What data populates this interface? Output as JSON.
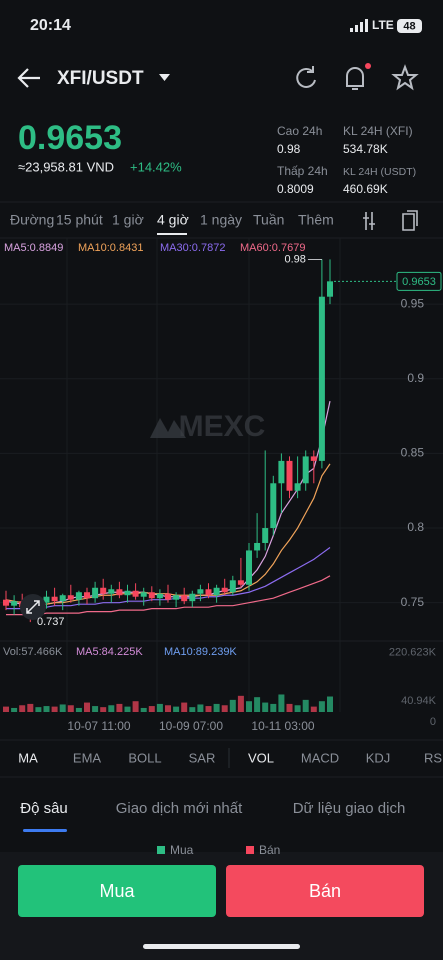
{
  "status": {
    "time": "20:14",
    "network": "LTE",
    "battery": "48"
  },
  "header": {
    "pair": "XFI/USDT"
  },
  "price": {
    "last": "0.9653",
    "vnd": "≈23,958.81 VND",
    "change": "+14.42%"
  },
  "stats": [
    {
      "label": "Cao 24h",
      "value": "0.98"
    },
    {
      "label": "KL 24H (XFI)",
      "value": "534.78K"
    },
    {
      "label": "Thấp 24h",
      "value": "0.8009"
    },
    {
      "label": "KL 24H (USDT)",
      "value": "460.69K"
    }
  ],
  "timeframes": [
    "Đường",
    "15 phút",
    "1 giờ",
    "4 giờ",
    "1 ngày",
    "Tuần",
    "Thêm"
  ],
  "ma_legend": [
    "MA5:0.8849",
    "MA10:0.8431",
    "MA30:0.7872",
    "MA60:0.7679"
  ],
  "chart": {
    "type": "candlestick",
    "watermark": "MEXC",
    "ylim": [
      0.725,
      0.995
    ],
    "yticks": [
      0.75,
      0.8,
      0.85,
      0.9,
      0.95
    ],
    "high": 0.98,
    "low": 0.737,
    "last": 0.9653,
    "up_color": "#2ebd85",
    "down_color": "#f6465d",
    "candles": [
      [
        0.752,
        0.758,
        0.745,
        0.748
      ],
      [
        0.748,
        0.755,
        0.742,
        0.751
      ],
      [
        0.751,
        0.756,
        0.745,
        0.747
      ],
      [
        0.747,
        0.75,
        0.737,
        0.745
      ],
      [
        0.745,
        0.752,
        0.74,
        0.75
      ],
      [
        0.75,
        0.758,
        0.746,
        0.754
      ],
      [
        0.754,
        0.76,
        0.748,
        0.751
      ],
      [
        0.751,
        0.756,
        0.745,
        0.755
      ],
      [
        0.755,
        0.762,
        0.75,
        0.752
      ],
      [
        0.752,
        0.758,
        0.748,
        0.757
      ],
      [
        0.757,
        0.76,
        0.749,
        0.753
      ],
      [
        0.753,
        0.764,
        0.75,
        0.76
      ],
      [
        0.76,
        0.766,
        0.752,
        0.756
      ],
      [
        0.756,
        0.762,
        0.75,
        0.759
      ],
      [
        0.759,
        0.764,
        0.753,
        0.755
      ],
      [
        0.755,
        0.762,
        0.75,
        0.758
      ],
      [
        0.758,
        0.763,
        0.752,
        0.754
      ],
      [
        0.754,
        0.76,
        0.748,
        0.757
      ],
      [
        0.757,
        0.761,
        0.751,
        0.753
      ],
      [
        0.753,
        0.759,
        0.748,
        0.756
      ],
      [
        0.756,
        0.762,
        0.75,
        0.752
      ],
      [
        0.752,
        0.757,
        0.747,
        0.755
      ],
      [
        0.755,
        0.76,
        0.749,
        0.751
      ],
      [
        0.751,
        0.758,
        0.747,
        0.756
      ],
      [
        0.756,
        0.762,
        0.751,
        0.759
      ],
      [
        0.759,
        0.763,
        0.753,
        0.755
      ],
      [
        0.755,
        0.762,
        0.75,
        0.76
      ],
      [
        0.76,
        0.766,
        0.755,
        0.757
      ],
      [
        0.757,
        0.768,
        0.755,
        0.765
      ],
      [
        0.765,
        0.78,
        0.76,
        0.762
      ],
      [
        0.762,
        0.79,
        0.758,
        0.785
      ],
      [
        0.785,
        0.81,
        0.78,
        0.79
      ],
      [
        0.79,
        0.852,
        0.785,
        0.8
      ],
      [
        0.8,
        0.835,
        0.795,
        0.83
      ],
      [
        0.83,
        0.85,
        0.81,
        0.845
      ],
      [
        0.845,
        0.848,
        0.82,
        0.825
      ],
      [
        0.825,
        0.848,
        0.82,
        0.83
      ],
      [
        0.83,
        0.852,
        0.825,
        0.848
      ],
      [
        0.848,
        0.852,
        0.83,
        0.845
      ],
      [
        0.845,
        0.98,
        0.84,
        0.955
      ],
      [
        0.955,
        0.98,
        0.95,
        0.9653
      ]
    ],
    "ma_lines": [
      {
        "name": "MA5",
        "color": "#d9a3e0",
        "values": [
          0.751,
          0.75,
          0.749,
          0.748,
          0.748,
          0.749,
          0.75,
          0.751,
          0.753,
          0.754,
          0.754,
          0.755,
          0.756,
          0.757,
          0.757,
          0.757,
          0.757,
          0.757,
          0.756,
          0.755,
          0.754,
          0.754,
          0.754,
          0.754,
          0.755,
          0.755,
          0.757,
          0.758,
          0.759,
          0.76,
          0.766,
          0.772,
          0.781,
          0.795,
          0.81,
          0.818,
          0.826,
          0.836,
          0.84,
          0.86,
          0.885
        ]
      },
      {
        "name": "MA10",
        "color": "#f0a35a",
        "values": [
          0.752,
          0.751,
          0.75,
          0.75,
          0.749,
          0.749,
          0.75,
          0.75,
          0.751,
          0.752,
          0.753,
          0.754,
          0.755,
          0.755,
          0.756,
          0.756,
          0.756,
          0.757,
          0.756,
          0.756,
          0.756,
          0.755,
          0.755,
          0.755,
          0.755,
          0.755,
          0.755,
          0.756,
          0.757,
          0.758,
          0.761,
          0.764,
          0.769,
          0.776,
          0.785,
          0.792,
          0.8,
          0.81,
          0.82,
          0.835,
          0.843
        ]
      },
      {
        "name": "MA30",
        "color": "#8c6cf0",
        "values": [
          0.746,
          0.746,
          0.746,
          0.747,
          0.747,
          0.747,
          0.748,
          0.748,
          0.748,
          0.749,
          0.749,
          0.749,
          0.75,
          0.75,
          0.75,
          0.751,
          0.751,
          0.751,
          0.752,
          0.752,
          0.752,
          0.753,
          0.753,
          0.753,
          0.753,
          0.754,
          0.754,
          0.755,
          0.755,
          0.756,
          0.757,
          0.759,
          0.761,
          0.764,
          0.767,
          0.77,
          0.773,
          0.776,
          0.779,
          0.783,
          0.787
        ]
      },
      {
        "name": "MA60",
        "color": "#f06a8a",
        "values": [
          0.742,
          0.742,
          0.742,
          0.742,
          0.742,
          0.743,
          0.743,
          0.743,
          0.743,
          0.743,
          0.744,
          0.744,
          0.744,
          0.744,
          0.745,
          0.745,
          0.745,
          0.745,
          0.746,
          0.746,
          0.746,
          0.746,
          0.747,
          0.747,
          0.747,
          0.747,
          0.748,
          0.748,
          0.748,
          0.749,
          0.75,
          0.751,
          0.752,
          0.753,
          0.755,
          0.757,
          0.759,
          0.761,
          0.763,
          0.765,
          0.768
        ]
      }
    ],
    "xlabels": [
      "10-07 11:00",
      "10-09 07:00",
      "10-11 03:00"
    ]
  },
  "volume": {
    "legend": [
      "Vol:57.466K",
      "MA5:84.225K",
      "MA10:89.239K"
    ],
    "ylim": [
      0,
      230
    ],
    "ticks": [
      {
        "value": 220.623,
        "label": "220.623K"
      },
      {
        "value": 40.94,
        "label": "40.94K"
      },
      0
    ],
    "values": [
      20,
      15,
      25,
      30,
      18,
      22,
      20,
      28,
      25,
      15,
      35,
      22,
      18,
      25,
      30,
      20,
      40,
      15,
      22,
      30,
      25,
      20,
      35,
      18,
      28,
      22,
      30,
      25,
      45,
      60,
      40,
      55,
      35,
      30,
      65,
      30,
      25,
      45,
      20,
      40,
      57.466
    ]
  },
  "indicators": [
    "MA",
    "EMA",
    "BOLL",
    "SAR",
    "VOL",
    "MACD",
    "KDJ",
    "RS"
  ],
  "tabs": [
    "Độ sâu",
    "Giao dịch mới nhất",
    "Dữ liệu giao dịch"
  ],
  "depth_legend": [
    "Mua",
    "Bán"
  ],
  "buttons": {
    "buy": "Mua",
    "sell": "Bán"
  }
}
